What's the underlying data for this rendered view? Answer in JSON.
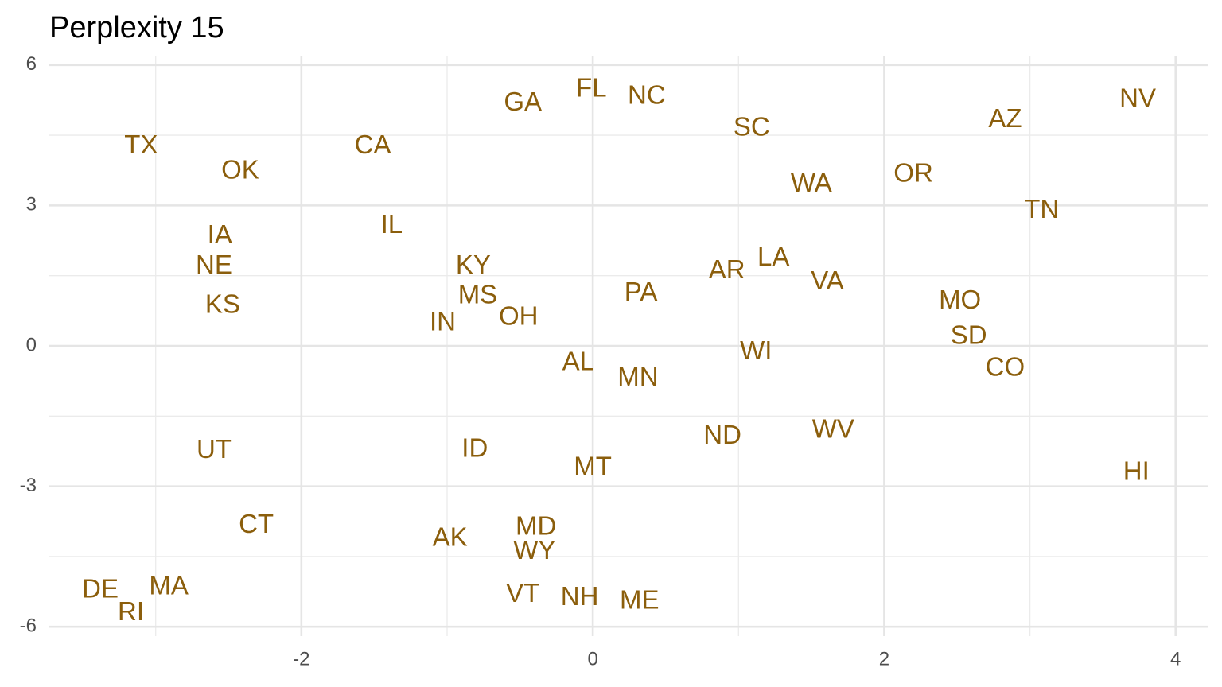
{
  "chart_data": {
    "type": "text_scatter",
    "title": "Perplexity 15",
    "color": "#8b5e0c",
    "labels": [
      "TX",
      "OK",
      "CA",
      "GA",
      "FL",
      "NC",
      "SC",
      "AZ",
      "NV",
      "WA",
      "OR",
      "TN",
      "IA",
      "NE",
      "KS",
      "IL",
      "KY",
      "MS",
      "OH",
      "IN",
      "PA",
      "AR",
      "LA",
      "VA",
      "MO",
      "SD",
      "CO",
      "WI",
      "AL",
      "MN",
      "ND",
      "WV",
      "UT",
      "ID",
      "MT",
      "HI",
      "CT",
      "AK",
      "MD",
      "WY",
      "DE",
      "MA",
      "RI",
      "VT",
      "NH",
      "ME"
    ],
    "x": [
      -3.1,
      -2.42,
      -1.51,
      -0.48,
      -0.01,
      0.37,
      1.09,
      2.83,
      3.74,
      1.5,
      2.2,
      3.08,
      -2.56,
      -2.6,
      -2.54,
      -1.38,
      -0.82,
      -0.79,
      -0.51,
      -1.03,
      0.33,
      0.92,
      1.24,
      1.61,
      2.52,
      2.58,
      2.83,
      1.12,
      -0.1,
      0.31,
      0.89,
      1.65,
      -2.6,
      -0.81,
      0.0,
      3.73,
      -2.31,
      -0.98,
      -0.39,
      -0.4,
      -3.38,
      -2.91,
      -3.17,
      -0.48,
      -0.09,
      0.32
    ],
    "values": [
      4.26,
      3.72,
      4.26,
      5.18,
      5.47,
      5.32,
      4.64,
      4.82,
      5.25,
      3.44,
      3.66,
      2.88,
      2.34,
      1.69,
      0.85,
      2.56,
      1.69,
      1.06,
      0.6,
      0.48,
      1.12,
      1.59,
      1.86,
      1.35,
      0.95,
      0.19,
      -0.49,
      -0.14,
      -0.37,
      -0.7,
      -1.94,
      -1.81,
      -2.25,
      -2.22,
      -2.61,
      -2.71,
      -3.84,
      -4.12,
      -3.89,
      -4.4,
      -5.23,
      -5.16,
      -5.71,
      -5.32,
      -5.39,
      -5.47
    ],
    "xlim": [
      -3.73,
      4.22
    ],
    "ylim": [
      -6.2,
      6.2
    ],
    "xticks": [
      -2,
      0,
      2,
      4
    ],
    "yticks": [
      -6,
      -3,
      0,
      3,
      6
    ],
    "xminorticks": [
      -3,
      -1,
      1,
      3
    ],
    "yminorticks": [
      -4.5,
      -1.5,
      1.5,
      4.5
    ],
    "grid": true
  }
}
